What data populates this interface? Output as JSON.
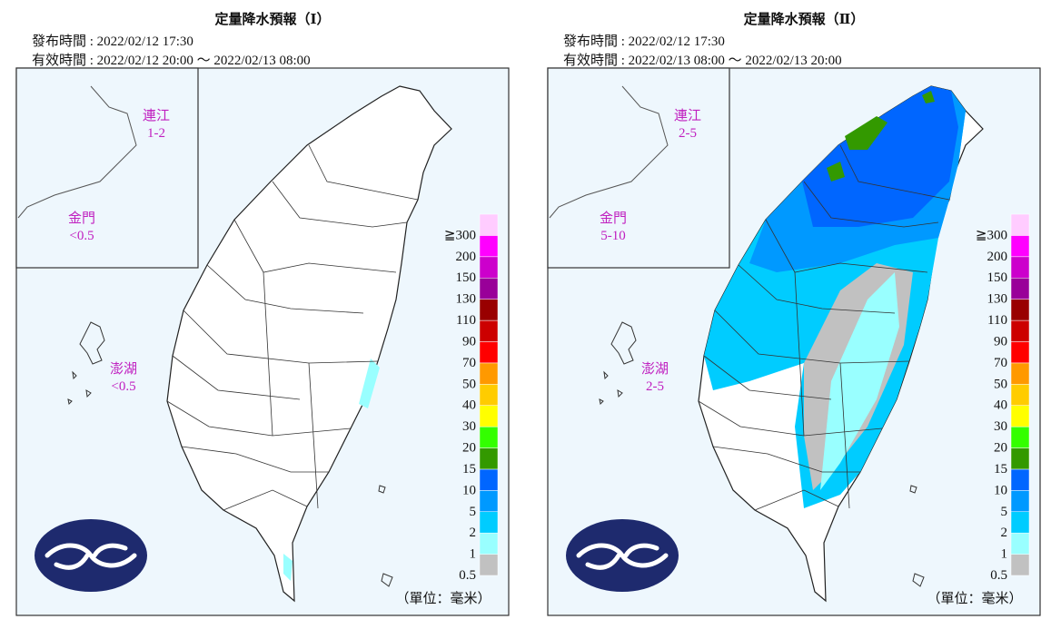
{
  "panels": [
    {
      "title": "定量降水預報（Ⅰ）",
      "issued": "發布時間 : 2022/02/12 17:30",
      "valid": "有效時間 : 2022/02/12 20:00 ～ 2022/02/13 08:00",
      "matsu": {
        "name": "連江",
        "value": "1-2"
      },
      "kinmen": {
        "name": "金門",
        "value": "<0.5"
      },
      "penghu": {
        "name": "澎湖",
        "value": "<0.5"
      }
    },
    {
      "title": "定量降水預報（Ⅱ）",
      "issued": "發布時間 : 2022/02/12 17:30",
      "valid": "有效時間 : 2022/02/13 08:00 ～ 2022/02/13 20:00",
      "matsu": {
        "name": "連江",
        "value": "2-5"
      },
      "kinmen": {
        "name": "金門",
        "value": "5-10"
      },
      "penghu": {
        "name": "澎湖",
        "value": "2-5"
      }
    }
  ],
  "legend": [
    {
      "label": "0.5",
      "color": "#c1c1c1"
    },
    {
      "label": "1",
      "color": "#99ffff"
    },
    {
      "label": "2",
      "color": "#00ccff"
    },
    {
      "label": "5",
      "color": "#0099ff"
    },
    {
      "label": "10",
      "color": "#0066ff"
    },
    {
      "label": "15",
      "color": "#339900"
    },
    {
      "label": "20",
      "color": "#33ff00"
    },
    {
      "label": "30",
      "color": "#ffff00"
    },
    {
      "label": "40",
      "color": "#ffcc00"
    },
    {
      "label": "50",
      "color": "#ff9900"
    },
    {
      "label": "70",
      "color": "#ff0000"
    },
    {
      "label": "90",
      "color": "#cc0000"
    },
    {
      "label": "110",
      "color": "#990000"
    },
    {
      "label": "130",
      "color": "#990099"
    },
    {
      "label": "150",
      "color": "#cc00cc"
    },
    {
      "label": "200",
      "color": "#ff00ff"
    },
    {
      "label": "≧300",
      "color": "#ffccff"
    }
  ],
  "unit": "（單位：毫米）"
}
